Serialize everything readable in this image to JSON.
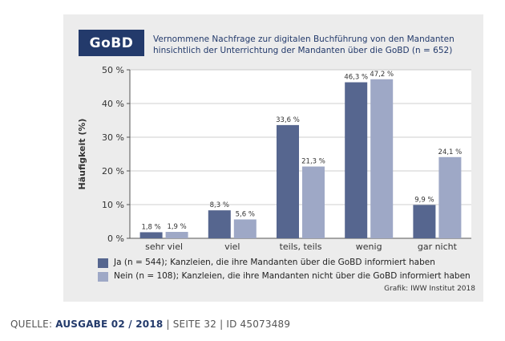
{
  "badge": "GoBD",
  "title": {
    "line1": "Vernommene Nachfrage zur digitalen Buchführung von den Mandanten",
    "line2": "hinsichtlich der Unterrichtung der Mandanten über die GoBD (n = 652)"
  },
  "colors": {
    "ja": "#56668f",
    "nein": "#9ea8c6",
    "badge": "#233a6b"
  },
  "chart_data": {
    "type": "bar",
    "title": "Vernommene Nachfrage zur digitalen Buchführung von den Mandanten hinsichtlich der Unterrichtung der Mandanten über die GoBD (n = 652)",
    "xlabel": "",
    "ylabel": "Häufigkeit (%)",
    "ylim": [
      0,
      50
    ],
    "yticks": [
      0,
      10,
      20,
      30,
      40,
      50
    ],
    "ytick_labels": [
      "0 %",
      "10 %",
      "20 %",
      "30 %",
      "40 %",
      "50 %"
    ],
    "categories": [
      "sehr viel",
      "viel",
      "teils, teils",
      "wenig",
      "gar nicht"
    ],
    "series": [
      {
        "name": "Ja (n = 544); Kanzleien, die ihre Mandanten über die GoBD informiert haben",
        "values": [
          1.8,
          8.3,
          33.6,
          46.3,
          9.9
        ],
        "labels": [
          "1,8 %",
          "8,3 %",
          "33,6 %",
          "46,3 %",
          "9,9 %"
        ]
      },
      {
        "name": "Nein (n = 108); Kanzleien, die ihre Mandanten nicht über die GoBD informiert haben",
        "values": [
          1.9,
          5.6,
          21.3,
          47.2,
          24.1
        ],
        "labels": [
          "1,9 %",
          "5,6 %",
          "21,3 %",
          "47,2 %",
          "24,1 %"
        ]
      }
    ]
  },
  "credit": "Grafik: IWW Institut 2018",
  "source": {
    "prefix": "QUELLE: ",
    "issue": "AUSGABE 02 / 2018",
    "sep1": " | ",
    "page": "SEITE 32",
    "sep2": " | ",
    "id": "ID 45073489"
  }
}
